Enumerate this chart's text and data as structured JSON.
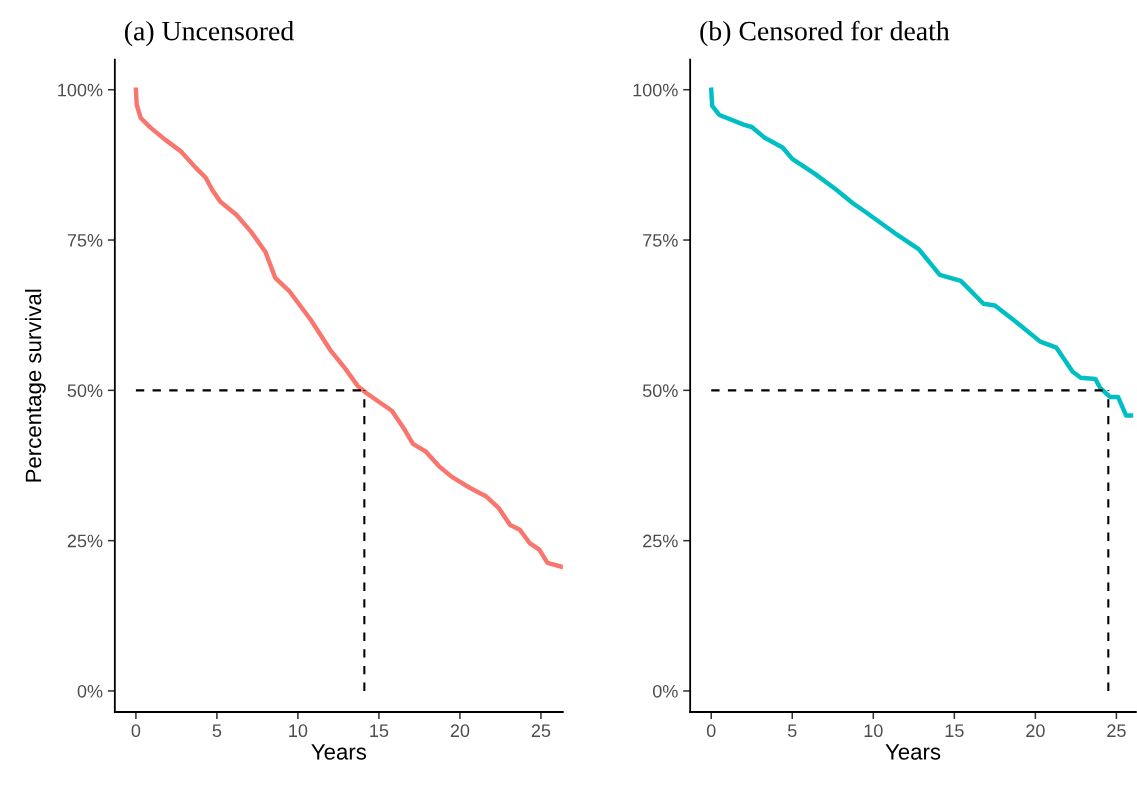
{
  "chart_data": [
    {
      "type": "line",
      "title": "(a) Uncensored",
      "xlabel": "Years",
      "ylabel": "Percentage survival",
      "xlim": [
        -1.3,
        26.35
      ],
      "xticks": [
        0,
        5,
        10,
        15,
        20,
        25
      ],
      "ylim": [
        -3.5,
        105
      ],
      "yticks": [
        {
          "value": 0,
          "label": "0%"
        },
        {
          "value": 25,
          "label": "25%"
        },
        {
          "value": 50,
          "label": "50%"
        },
        {
          "value": 75,
          "label": "75%"
        },
        {
          "value": 100,
          "label": "100%"
        }
      ],
      "grid": false,
      "legend": false,
      "series": [
        {
          "color": "#f8766d",
          "x": [
            0,
            0.05,
            0.3,
            0.9,
            1.8,
            2.8,
            3.7,
            4.3,
            4.7,
            5.2,
            6.2,
            7.1,
            8.0,
            8.6,
            9.5,
            10.8,
            12.0,
            12.9,
            13.7,
            14.2,
            15.1,
            15.8,
            16.6,
            17.1,
            17.9,
            18.7,
            19.5,
            20.6,
            21.6,
            22.4,
            23.1,
            23.7,
            24.3,
            24.9,
            25.4,
            26.35
          ],
          "values": [
            100,
            97.5,
            95.3,
            93.7,
            91.7,
            89.7,
            87.0,
            85.4,
            83.4,
            81.4,
            79.2,
            76.4,
            73.0,
            68.7,
            66.4,
            61.7,
            56.7,
            53.7,
            50.7,
            49.6,
            47.9,
            46.6,
            43.4,
            41.1,
            39.8,
            37.4,
            35.6,
            33.8,
            32.4,
            30.4,
            27.6,
            26.8,
            24.6,
            23.5,
            21.3,
            20.6
          ]
        }
      ],
      "ref_lines": [
        {
          "axis": "y",
          "value": 50,
          "line_style": "dashed",
          "color": "#000000"
        },
        {
          "axis": "x",
          "value": 14.1,
          "line_style": "dashed",
          "color": "#000000"
        }
      ]
    },
    {
      "type": "line",
      "title": "(b) Censored for death",
      "xlabel": "Years",
      "xlim": [
        -1.3,
        26.2
      ],
      "xticks": [
        0,
        5,
        10,
        15,
        20,
        25
      ],
      "ylim": [
        -3.5,
        105
      ],
      "yticks": [
        {
          "value": 0,
          "label": "0%"
        },
        {
          "value": 25,
          "label": "25%"
        },
        {
          "value": 50,
          "label": "50%"
        },
        {
          "value": 75,
          "label": "75%"
        },
        {
          "value": 100,
          "label": "100%"
        }
      ],
      "grid": false,
      "legend": false,
      "series": [
        {
          "color": "#00bfc4",
          "x": [
            0,
            0.06,
            0.5,
            2.0,
            2.5,
            3.3,
            4.4,
            5.0,
            6.4,
            7.7,
            8.7,
            9.5,
            11.3,
            12.8,
            14.1,
            15.4,
            16.8,
            17.5,
            18.7,
            20.3,
            21.3,
            22.3,
            22.8,
            23.7,
            24.0,
            24.6,
            25.1,
            25.6,
            25.9
          ],
          "values": [
            100,
            97.3,
            95.8,
            94.2,
            93.8,
            92.0,
            90.4,
            88.5,
            86.0,
            83.4,
            81.2,
            79.7,
            76.2,
            73.5,
            69.2,
            68.2,
            64.4,
            64.1,
            61.6,
            58.1,
            57.1,
            53.1,
            52.1,
            51.9,
            50.4,
            48.9,
            48.9,
            45.8,
            45.8
          ]
        }
      ],
      "ref_lines": [
        {
          "axis": "y",
          "value": 50,
          "line_style": "dashed",
          "color": "#000000"
        },
        {
          "axis": "x",
          "value": 24.5,
          "line_style": "dashed",
          "color": "#000000"
        }
      ]
    }
  ]
}
